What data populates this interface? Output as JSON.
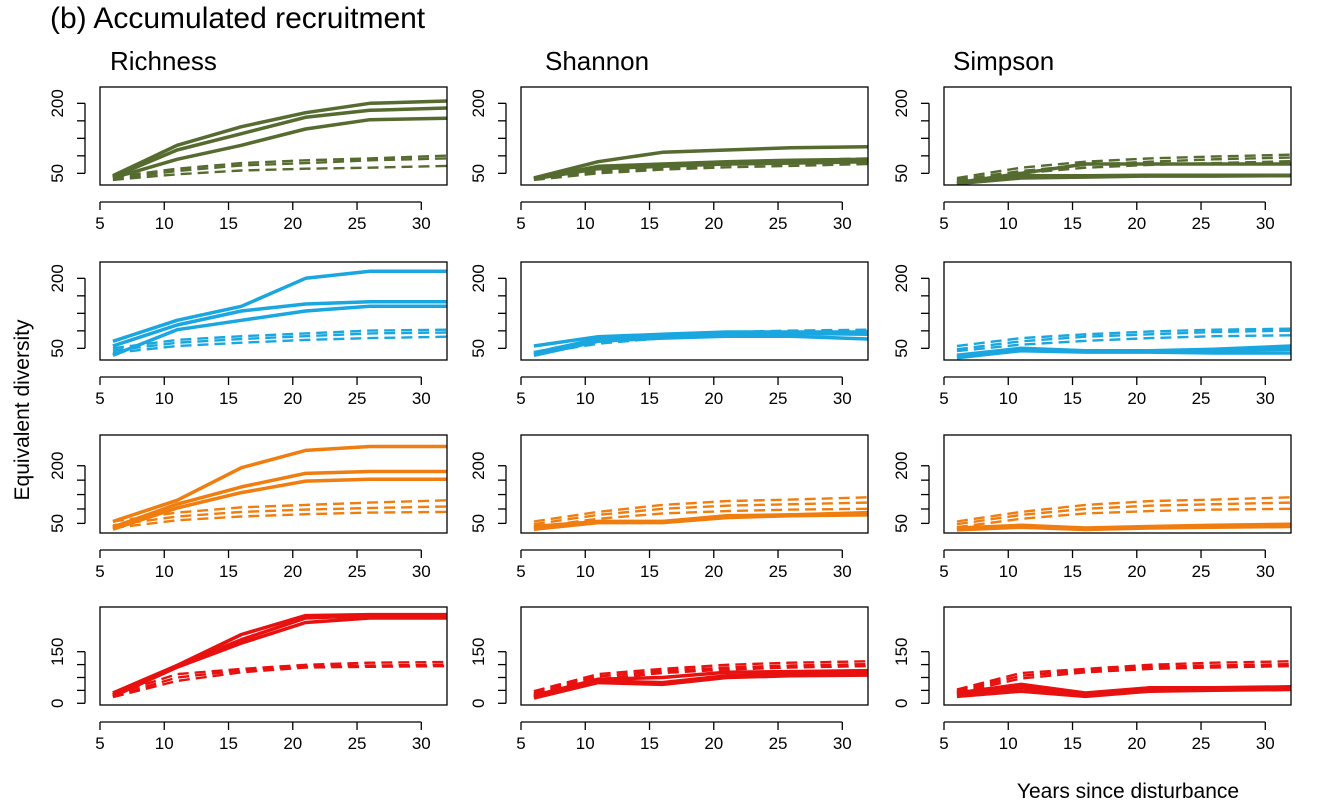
{
  "figure": {
    "title": "(b) Accumulated recruitment",
    "ylabel": "Equivalent diversity",
    "xlabel": "Years since disturbance",
    "columns": [
      "Richness",
      "Shannon",
      "Simpson"
    ]
  },
  "chart_data": [
    {
      "type": "line",
      "row": 0,
      "col": 0,
      "color": "#556B2F",
      "xlim": [
        5,
        32
      ],
      "ylim": [
        25,
        235
      ],
      "xticks": [
        5,
        10,
        15,
        20,
        25,
        30
      ],
      "yticks": [
        50,
        200
      ],
      "x": [
        6,
        11,
        16,
        21,
        26,
        32
      ],
      "series": [
        {
          "style": "solid",
          "values": [
            45,
            110,
            150,
            180,
            200,
            205
          ]
        },
        {
          "style": "solid",
          "values": [
            42,
            100,
            135,
            170,
            185,
            190
          ]
        },
        {
          "style": "solid",
          "values": [
            40,
            80,
            110,
            145,
            165,
            168
          ]
        },
        {
          "style": "dashed",
          "values": [
            42,
            60,
            72,
            78,
            82,
            88
          ]
        },
        {
          "style": "dashed",
          "values": [
            38,
            55,
            67,
            72,
            78,
            82
          ]
        },
        {
          "style": "dashed",
          "values": [
            36,
            48,
            56,
            60,
            62,
            66
          ]
        }
      ]
    },
    {
      "type": "line",
      "row": 0,
      "col": 1,
      "color": "#556B2F",
      "xlim": [
        5,
        32
      ],
      "ylim": [
        25,
        235
      ],
      "xticks": [
        5,
        10,
        15,
        20,
        25,
        30
      ],
      "yticks": [
        50,
        200
      ],
      "x": [
        6,
        11,
        16,
        21,
        26,
        32
      ],
      "series": [
        {
          "style": "solid",
          "values": [
            40,
            75,
            95,
            100,
            105,
            107
          ]
        },
        {
          "style": "solid",
          "values": [
            38,
            65,
            70,
            75,
            78,
            80
          ]
        },
        {
          "style": "solid",
          "values": [
            38,
            60,
            65,
            70,
            72,
            75
          ]
        },
        {
          "style": "dashed",
          "values": [
            40,
            55,
            65,
            72,
            78,
            82
          ]
        },
        {
          "style": "dashed",
          "values": [
            38,
            52,
            62,
            68,
            72,
            76
          ]
        },
        {
          "style": "dashed",
          "values": [
            36,
            50,
            58,
            63,
            66,
            70
          ]
        }
      ]
    },
    {
      "type": "line",
      "row": 0,
      "col": 2,
      "color": "#556B2F",
      "xlim": [
        5,
        32
      ],
      "ylim": [
        25,
        235
      ],
      "xticks": [
        5,
        10,
        15,
        20,
        25,
        30
      ],
      "yticks": [
        50,
        200
      ],
      "x": [
        6,
        11,
        16,
        21,
        26,
        32
      ],
      "series": [
        {
          "style": "solid",
          "values": [
            30,
            50,
            70,
            70,
            70,
            70
          ]
        },
        {
          "style": "solid",
          "values": [
            28,
            45,
            45,
            46,
            46,
            46
          ]
        },
        {
          "style": "solid",
          "values": [
            28,
            40,
            42,
            44,
            44,
            45
          ]
        },
        {
          "style": "dashed",
          "values": [
            40,
            62,
            75,
            82,
            86,
            90
          ]
        },
        {
          "style": "dashed",
          "values": [
            36,
            55,
            68,
            75,
            80,
            84
          ]
        },
        {
          "style": "dashed",
          "values": [
            34,
            50,
            62,
            68,
            72,
            76
          ]
        }
      ]
    },
    {
      "type": "line",
      "row": 1,
      "col": 0,
      "color": "#1AA7E0",
      "xlim": [
        5,
        32
      ],
      "ylim": [
        25,
        235
      ],
      "xticks": [
        5,
        10,
        15,
        20,
        25,
        30
      ],
      "yticks": [
        50,
        200
      ],
      "x": [
        6,
        11,
        16,
        21,
        26,
        32
      ],
      "series": [
        {
          "style": "solid",
          "values": [
            65,
            110,
            140,
            200,
            215,
            215
          ]
        },
        {
          "style": "solid",
          "values": [
            55,
            100,
            130,
            145,
            150,
            150
          ]
        },
        {
          "style": "solid",
          "values": [
            35,
            90,
            110,
            130,
            140,
            140
          ]
        },
        {
          "style": "dashed",
          "values": [
            50,
            68,
            76,
            82,
            88,
            90
          ]
        },
        {
          "style": "dashed",
          "values": [
            45,
            62,
            70,
            76,
            82,
            84
          ]
        },
        {
          "style": "dashed",
          "values": [
            40,
            55,
            62,
            68,
            72,
            75
          ]
        }
      ]
    },
    {
      "type": "line",
      "row": 1,
      "col": 1,
      "color": "#1AA7E0",
      "xlim": [
        5,
        32
      ],
      "ylim": [
        25,
        235
      ],
      "xticks": [
        5,
        10,
        15,
        20,
        25,
        30
      ],
      "yticks": [
        50,
        200
      ],
      "x": [
        6,
        11,
        16,
        21,
        26,
        32
      ],
      "series": [
        {
          "style": "solid",
          "values": [
            55,
            75,
            80,
            85,
            85,
            85
          ]
        },
        {
          "style": "solid",
          "values": [
            40,
            70,
            78,
            82,
            82,
            80
          ]
        },
        {
          "style": "solid",
          "values": [
            35,
            65,
            72,
            76,
            76,
            70
          ]
        },
        {
          "style": "dashed",
          "values": [
            42,
            70,
            80,
            85,
            88,
            90
          ]
        },
        {
          "style": "dashed",
          "values": [
            40,
            65,
            75,
            82,
            85,
            88
          ]
        },
        {
          "style": "dashed",
          "values": [
            38,
            60,
            72,
            78,
            82,
            86
          ]
        }
      ]
    },
    {
      "type": "line",
      "row": 1,
      "col": 2,
      "color": "#1AA7E0",
      "xlim": [
        5,
        32
      ],
      "ylim": [
        25,
        235
      ],
      "xticks": [
        5,
        10,
        15,
        20,
        25,
        30
      ],
      "yticks": [
        50,
        200
      ],
      "x": [
        6,
        11,
        16,
        21,
        26,
        32
      ],
      "series": [
        {
          "style": "solid",
          "values": [
            35,
            50,
            45,
            45,
            48,
            55
          ]
        },
        {
          "style": "solid",
          "values": [
            32,
            48,
            44,
            44,
            46,
            48
          ]
        },
        {
          "style": "solid",
          "values": [
            30,
            45,
            42,
            42,
            40,
            40
          ]
        },
        {
          "style": "dashed",
          "values": [
            55,
            72,
            80,
            86,
            90,
            92
          ]
        },
        {
          "style": "dashed",
          "values": [
            48,
            65,
            75,
            80,
            85,
            88
          ]
        },
        {
          "style": "dashed",
          "values": [
            44,
            58,
            66,
            72,
            76,
            78
          ]
        }
      ]
    },
    {
      "type": "line",
      "row": 2,
      "col": 0,
      "color": "#F07D0F",
      "xlim": [
        5,
        32
      ],
      "ylim": [
        25,
        280
      ],
      "xticks": [
        5,
        10,
        15,
        20,
        25,
        30
      ],
      "yticks": [
        50,
        200
      ],
      "x": [
        6,
        11,
        16,
        21,
        26,
        32
      ],
      "series": [
        {
          "style": "solid",
          "values": [
            55,
            110,
            195,
            240,
            250,
            250
          ]
        },
        {
          "style": "solid",
          "values": [
            40,
            100,
            145,
            180,
            185,
            185
          ]
        },
        {
          "style": "solid",
          "values": [
            35,
            90,
            130,
            160,
            165,
            165
          ]
        },
        {
          "style": "dashed",
          "values": [
            55,
            78,
            92,
            98,
            104,
            110
          ]
        },
        {
          "style": "dashed",
          "values": [
            45,
            68,
            80,
            86,
            90,
            94
          ]
        },
        {
          "style": "dashed",
          "values": [
            38,
            58,
            68,
            74,
            78,
            80
          ]
        }
      ]
    },
    {
      "type": "line",
      "row": 2,
      "col": 1,
      "color": "#F07D0F",
      "xlim": [
        5,
        32
      ],
      "ylim": [
        25,
        280
      ],
      "xticks": [
        5,
        10,
        15,
        20,
        25,
        30
      ],
      "yticks": [
        50,
        200
      ],
      "x": [
        6,
        11,
        16,
        21,
        26,
        32
      ],
      "series": [
        {
          "style": "solid",
          "values": [
            42,
            55,
            55,
            70,
            72,
            78
          ]
        },
        {
          "style": "solid",
          "values": [
            38,
            55,
            55,
            68,
            72,
            76
          ]
        },
        {
          "style": "solid",
          "values": [
            35,
            52,
            52,
            65,
            70,
            72
          ]
        },
        {
          "style": "dashed",
          "values": [
            55,
            80,
            98,
            108,
            112,
            118
          ]
        },
        {
          "style": "dashed",
          "values": [
            48,
            72,
            88,
            96,
            100,
            104
          ]
        },
        {
          "style": "dashed",
          "values": [
            40,
            62,
            76,
            82,
            86,
            88
          ]
        }
      ]
    },
    {
      "type": "line",
      "row": 2,
      "col": 2,
      "color": "#F07D0F",
      "xlim": [
        5,
        32
      ],
      "ylim": [
        25,
        280
      ],
      "xticks": [
        5,
        10,
        15,
        20,
        25,
        30
      ],
      "yticks": [
        50,
        200
      ],
      "x": [
        6,
        11,
        16,
        21,
        26,
        32
      ],
      "series": [
        {
          "style": "solid",
          "values": [
            38,
            45,
            38,
            42,
            45,
            48
          ]
        },
        {
          "style": "solid",
          "values": [
            35,
            42,
            36,
            40,
            42,
            45
          ]
        },
        {
          "style": "solid",
          "values": [
            33,
            40,
            34,
            38,
            40,
            42
          ]
        },
        {
          "style": "dashed",
          "values": [
            55,
            80,
            98,
            108,
            112,
            118
          ]
        },
        {
          "style": "dashed",
          "values": [
            48,
            72,
            88,
            96,
            100,
            104
          ]
        },
        {
          "style": "dashed",
          "values": [
            40,
            62,
            76,
            82,
            86,
            88
          ]
        }
      ]
    },
    {
      "type": "line",
      "row": 3,
      "col": 0,
      "color": "#E8110F",
      "xlim": [
        5,
        32
      ],
      "ylim": [
        -5,
        280
      ],
      "xticks": [
        5,
        10,
        15,
        20,
        25,
        30
      ],
      "yticks": [
        0,
        150
      ],
      "x": [
        6,
        11,
        16,
        21,
        26,
        32
      ],
      "series": [
        {
          "style": "solid",
          "values": [
            30,
            110,
            200,
            255,
            258,
            258
          ]
        },
        {
          "style": "solid",
          "values": [
            25,
            110,
            185,
            248,
            255,
            255
          ]
        },
        {
          "style": "solid",
          "values": [
            20,
            105,
            175,
            235,
            248,
            248
          ]
        },
        {
          "style": "dashed",
          "values": [
            25,
            85,
            100,
            112,
            118,
            120
          ]
        },
        {
          "style": "dashed",
          "values": [
            20,
            75,
            96,
            108,
            110,
            112
          ]
        },
        {
          "style": "dashed",
          "values": [
            18,
            65,
            90,
            104,
            106,
            108
          ]
        }
      ]
    },
    {
      "type": "line",
      "row": 3,
      "col": 1,
      "color": "#E8110F",
      "xlim": [
        5,
        32
      ],
      "ylim": [
        -5,
        280
      ],
      "xticks": [
        5,
        10,
        15,
        20,
        25,
        30
      ],
      "yticks": [
        0,
        150
      ],
      "x": [
        6,
        11,
        16,
        21,
        26,
        32
      ],
      "series": [
        {
          "style": "solid",
          "values": [
            22,
            70,
            75,
            90,
            92,
            95
          ]
        },
        {
          "style": "solid",
          "values": [
            18,
            65,
            60,
            80,
            85,
            88
          ]
        },
        {
          "style": "solid",
          "values": [
            15,
            60,
            55,
            75,
            80,
            82
          ]
        },
        {
          "style": "dashed",
          "values": [
            35,
            85,
            100,
            112,
            118,
            122
          ]
        },
        {
          "style": "dashed",
          "values": [
            30,
            78,
            94,
            104,
            110,
            114
          ]
        },
        {
          "style": "dashed",
          "values": [
            26,
            70,
            88,
            98,
            104,
            108
          ]
        }
      ]
    },
    {
      "type": "line",
      "row": 3,
      "col": 2,
      "color": "#E8110F",
      "xlim": [
        5,
        32
      ],
      "ylim": [
        -5,
        280
      ],
      "xticks": [
        5,
        10,
        15,
        20,
        25,
        30
      ],
      "yticks": [
        0,
        150
      ],
      "x": [
        6,
        11,
        16,
        21,
        26,
        32
      ],
      "series": [
        {
          "style": "solid",
          "values": [
            30,
            55,
            30,
            45,
            45,
            48
          ]
        },
        {
          "style": "solid",
          "values": [
            25,
            45,
            25,
            40,
            42,
            44
          ]
        },
        {
          "style": "solid",
          "values": [
            20,
            35,
            20,
            35,
            38,
            40
          ]
        },
        {
          "style": "dashed",
          "values": [
            40,
            88,
            100,
            112,
            118,
            122
          ]
        },
        {
          "style": "dashed",
          "values": [
            35,
            80,
            96,
            106,
            110,
            114
          ]
        },
        {
          "style": "dashed",
          "values": [
            30,
            72,
            90,
            100,
            104,
            108
          ]
        }
      ]
    }
  ]
}
